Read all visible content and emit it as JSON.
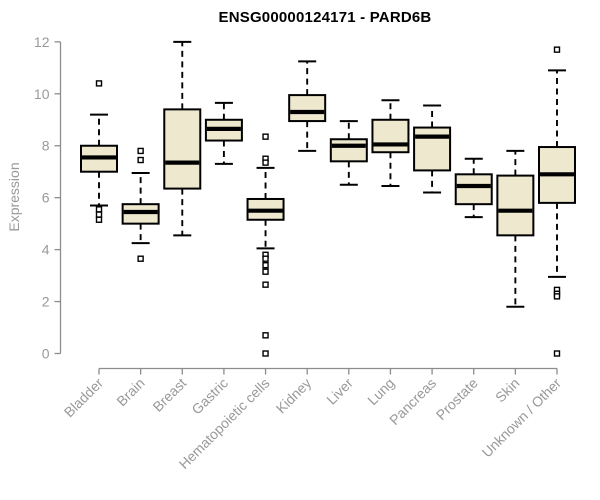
{
  "chart_data": {
    "type": "boxplot",
    "title": "ENSG00000124171 - PARD6B",
    "ylabel": "Expression",
    "ylim": [
      0,
      12
    ],
    "yticks": [
      0,
      2,
      4,
      6,
      8,
      10,
      12
    ],
    "grid": false,
    "legend": "none",
    "categories": [
      "Bladder",
      "Brain",
      "Breast",
      "Gastric",
      "Hematopoietic cells",
      "Kidney",
      "Liver",
      "Lung",
      "Pancreas",
      "Prostate",
      "Skin",
      "Unknown / Other"
    ],
    "series": [
      {
        "category": "Bladder",
        "whisker_low": 5.7,
        "q1": 7.0,
        "median": 7.55,
        "q3": 8.0,
        "whisker_high": 9.2,
        "outliers": [
          10.4,
          5.55,
          5.35,
          5.15
        ]
      },
      {
        "category": "Brain",
        "whisker_low": 4.25,
        "q1": 5.0,
        "median": 5.45,
        "q3": 5.75,
        "whisker_high": 6.95,
        "outliers": [
          7.8,
          7.45,
          3.65
        ]
      },
      {
        "category": "Breast",
        "whisker_low": 4.55,
        "q1": 6.35,
        "median": 7.35,
        "q3": 9.4,
        "whisker_high": 12.0,
        "outliers": []
      },
      {
        "category": "Gastric",
        "whisker_low": 7.3,
        "q1": 8.2,
        "median": 8.65,
        "q3": 9.0,
        "whisker_high": 9.65,
        "outliers": []
      },
      {
        "category": "Hematopoietic cells",
        "whisker_low": 4.05,
        "q1": 5.15,
        "median": 5.5,
        "q3": 5.95,
        "whisker_high": 7.15,
        "outliers": [
          8.35,
          7.5,
          7.35,
          3.8,
          3.65,
          3.4,
          3.15,
          2.65,
          0.7,
          0.0
        ]
      },
      {
        "category": "Kidney",
        "whisker_low": 7.8,
        "q1": 8.95,
        "median": 9.3,
        "q3": 9.95,
        "whisker_high": 11.25,
        "outliers": []
      },
      {
        "category": "Liver",
        "whisker_low": 6.5,
        "q1": 7.4,
        "median": 8.0,
        "q3": 8.25,
        "whisker_high": 8.95,
        "outliers": []
      },
      {
        "category": "Lung",
        "whisker_low": 6.45,
        "q1": 7.75,
        "median": 8.05,
        "q3": 9.0,
        "whisker_high": 9.75,
        "outliers": []
      },
      {
        "category": "Pancreas",
        "whisker_low": 6.2,
        "q1": 7.05,
        "median": 8.35,
        "q3": 8.7,
        "whisker_high": 9.55,
        "outliers": []
      },
      {
        "category": "Prostate",
        "whisker_low": 5.25,
        "q1": 5.75,
        "median": 6.45,
        "q3": 6.9,
        "whisker_high": 7.5,
        "outliers": []
      },
      {
        "category": "Skin",
        "whisker_low": 1.8,
        "q1": 4.55,
        "median": 5.5,
        "q3": 6.85,
        "whisker_high": 7.8,
        "outliers": []
      },
      {
        "category": "Unknown / Other",
        "whisker_low": 2.95,
        "q1": 5.8,
        "median": 6.9,
        "q3": 7.95,
        "whisker_high": 10.9,
        "outliers": [
          11.7,
          2.45,
          2.3,
          2.2,
          0.0
        ]
      }
    ],
    "colors": {
      "box_fill": "#EDE8CE",
      "box_border": "#000000",
      "median": "#000000",
      "whisker": "#000000",
      "outlier_fill": "#ffffff",
      "axis": "#8C8C8C",
      "tick_text": "#999999",
      "title_text": "#000000"
    }
  }
}
